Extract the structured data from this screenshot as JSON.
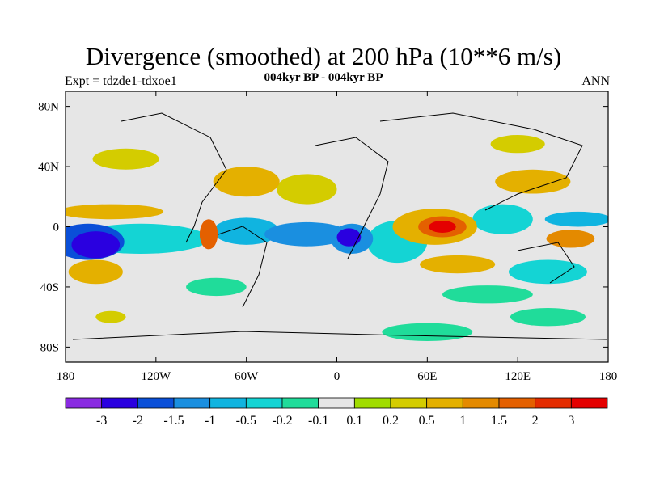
{
  "chart_data": {
    "type": "heatmap",
    "title": "Divergence (smoothed) at 200 hPa (10**6 m/s)",
    "subtitle": "004kyr BP - 004kyr BP",
    "left_label": "Expt = tdzde1-tdxoe1",
    "right_label": "ANN",
    "x_range": [
      -180,
      180
    ],
    "y_range": [
      -90,
      90
    ],
    "x_ticks": [
      {
        "value": -180,
        "label": "180"
      },
      {
        "value": -120,
        "label": "120W"
      },
      {
        "value": -60,
        "label": "60W"
      },
      {
        "value": 0,
        "label": "0"
      },
      {
        "value": 60,
        "label": "60E"
      },
      {
        "value": 120,
        "label": "120E"
      },
      {
        "value": 180,
        "label": "180"
      }
    ],
    "y_ticks": [
      {
        "value": 80,
        "label": "80N"
      },
      {
        "value": 40,
        "label": "40N"
      },
      {
        "value": 0,
        "label": "0"
      },
      {
        "value": -40,
        "label": "40S"
      },
      {
        "value": -80,
        "label": "80S"
      }
    ],
    "colorbar": {
      "labels": [
        "-3",
        "-2",
        "-1.5",
        "-1",
        "-0.5",
        "-0.2",
        "-0.1",
        "0.1",
        "0.2",
        "0.5",
        "1",
        "1.5",
        "2",
        "3"
      ],
      "colors": [
        "#8a2be2",
        "#2a00e0",
        "#0a4fd8",
        "#1a8fe0",
        "#10b4e0",
        "#14d4d4",
        "#20dc9a",
        "#e6e6e6",
        "#a0dc00",
        "#d4cc00",
        "#e4b000",
        "#e48a00",
        "#e46000",
        "#e42c00",
        "#e40000"
      ]
    },
    "anomalies": [
      {
        "lon": -160,
        "lat": -12,
        "level": -3,
        "rlon": 16,
        "rlat": 9
      },
      {
        "lon": -165,
        "lat": -10,
        "level": -2,
        "rlon": 24,
        "rlat": 12
      },
      {
        "lon": -130,
        "lat": -8,
        "level": -0.5,
        "rlon": 45,
        "rlat": 10
      },
      {
        "lon": -60,
        "lat": -3,
        "level": -1,
        "rlon": 22,
        "rlat": 9
      },
      {
        "lon": -20,
        "lat": -5,
        "level": -1.5,
        "rlon": 28,
        "rlat": 8
      },
      {
        "lon": 8,
        "lat": -7,
        "level": -3,
        "rlon": 8,
        "rlat": 6
      },
      {
        "lon": 10,
        "lat": -8,
        "level": -1.5,
        "rlon": 14,
        "rlat": 10
      },
      {
        "lon": 40,
        "lat": -10,
        "level": -0.5,
        "rlon": 20,
        "rlat": 14
      },
      {
        "lon": 110,
        "lat": 5,
        "level": -0.5,
        "rlon": 20,
        "rlat": 10
      },
      {
        "lon": 160,
        "lat": 5,
        "level": -1,
        "rlon": 22,
        "rlat": 5
      },
      {
        "lon": 140,
        "lat": -30,
        "level": -0.5,
        "rlon": 26,
        "rlat": 8
      },
      {
        "lon": -150,
        "lat": 10,
        "level": 0.5,
        "rlon": 35,
        "rlat": 5
      },
      {
        "lon": -85,
        "lat": -5,
        "level": 1.5,
        "rlon": 6,
        "rlat": 10
      },
      {
        "lon": -60,
        "lat": 30,
        "level": 0.5,
        "rlon": 22,
        "rlat": 10
      },
      {
        "lon": -20,
        "lat": 25,
        "level": 0.2,
        "rlon": 20,
        "rlat": 10
      },
      {
        "lon": 70,
        "lat": 0,
        "level": 3,
        "rlon": 9,
        "rlat": 4
      },
      {
        "lon": 70,
        "lat": 0,
        "level": 1.5,
        "rlon": 16,
        "rlat": 7
      },
      {
        "lon": 65,
        "lat": 0,
        "level": 0.5,
        "rlon": 28,
        "rlat": 12
      },
      {
        "lon": 155,
        "lat": -8,
        "level": 1,
        "rlon": 16,
        "rlat": 6
      },
      {
        "lon": 130,
        "lat": 30,
        "level": 0.5,
        "rlon": 25,
        "rlat": 8
      },
      {
        "lon": -160,
        "lat": -30,
        "level": 0.5,
        "rlon": 18,
        "rlat": 8
      },
      {
        "lon": 80,
        "lat": -25,
        "level": 0.5,
        "rlon": 25,
        "rlat": 6
      },
      {
        "lon": -140,
        "lat": 45,
        "level": 0.2,
        "rlon": 22,
        "rlat": 7
      },
      {
        "lon": -80,
        "lat": -40,
        "level": -0.2,
        "rlon": 20,
        "rlat": 6
      },
      {
        "lon": 100,
        "lat": -45,
        "level": -0.2,
        "rlon": 30,
        "rlat": 6
      },
      {
        "lon": -150,
        "lat": -60,
        "level": 0.2,
        "rlon": 10,
        "rlat": 4
      },
      {
        "lon": 60,
        "lat": -70,
        "level": -0.2,
        "rlon": 30,
        "rlat": 6
      },
      {
        "lon": 140,
        "lat": -60,
        "level": -0.2,
        "rlon": 25,
        "rlat": 6
      },
      {
        "lon": 120,
        "lat": 55,
        "level": 0.2,
        "rlon": 18,
        "rlat": 6
      }
    ]
  }
}
